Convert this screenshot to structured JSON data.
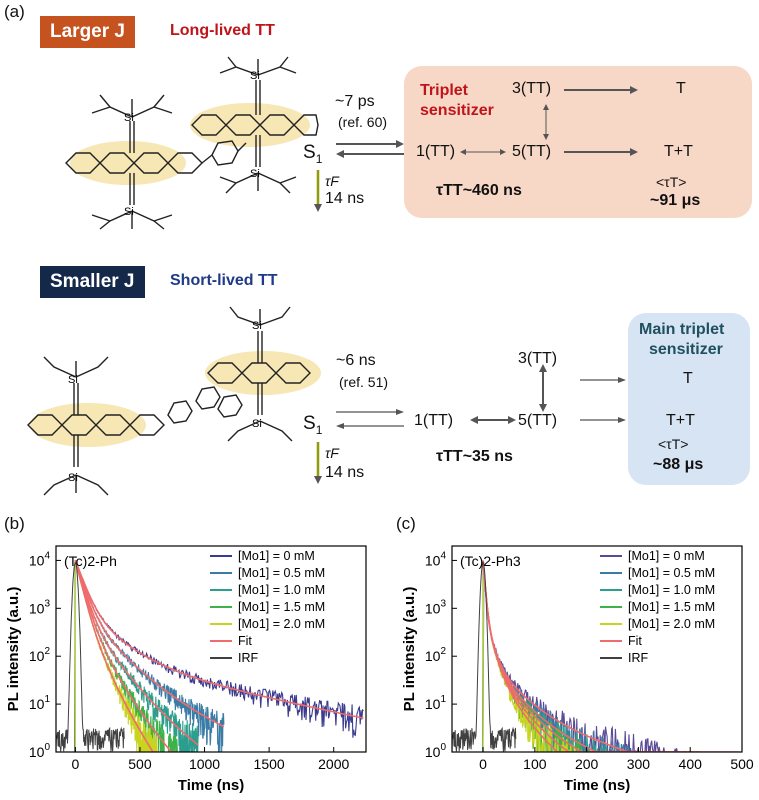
{
  "panel_labels": {
    "a": "(a)",
    "b": "(b)",
    "c": "(c)"
  },
  "top": {
    "badge": "Larger J",
    "subtitle": "Long-lived TT",
    "rate": "~7 ps",
    "ref": "(ref. 60)",
    "s1": "S1",
    "tauF": "τF",
    "tauF_value": "14 ns",
    "box_title_1": "Triplet",
    "box_title_2": "sensitizer",
    "tt3": "3(TT)",
    "tt1": "1(TT)",
    "tt5": "5(TT)",
    "T": "T",
    "TT": "T+T",
    "tau_tt": "τTT~460 ns",
    "tau_t": "<τT>",
    "tau_t_value": "~91 μs",
    "colors": {
      "badge": "#c6521f",
      "subtitle": "#c0141b",
      "box": "#f7d8c6"
    }
  },
  "bottom": {
    "badge": "Smaller J",
    "subtitle": "Short-lived TT",
    "rate": "~6 ns",
    "ref": "(ref. 51)",
    "s1": "S1",
    "tauF": "τF",
    "tauF_value": "14 ns",
    "box_title_1": "Main triplet",
    "box_title_2": "sensitizer",
    "tt3": "3(TT)",
    "tt1": "1(TT)",
    "tt5": "5(TT)",
    "T": "T",
    "TT": "T+T",
    "tau_tt": "τTT~35 ns",
    "tau_t": "<τT>",
    "tau_t_value": "~88 μs",
    "colors": {
      "badge": "#14284a",
      "subtitle": "#1f3a8a",
      "box": "#d6e4f3"
    }
  },
  "chart_data": [
    {
      "type": "line",
      "panel": "b",
      "annotation": "(Tc)2-Ph",
      "xlabel": "Time (ns)",
      "ylabel": "PL intensity (a.u.)",
      "xlim": [
        -150,
        2250
      ],
      "ylim": [
        1,
        20000
      ],
      "yscale": "log",
      "xticks": [
        0,
        500,
        1000,
        1500,
        2000
      ],
      "yticks": [
        "10^0",
        "10^1",
        "10^2",
        "10^3",
        "10^4"
      ],
      "series": [
        {
          "name": "[Mo1] = 0   mM",
          "color": "#3b3c8f",
          "components": [
            [
              9000,
              55
            ],
            [
              1000,
              180
            ],
            [
              100,
              650
            ],
            [
              12,
              1200
            ]
          ],
          "end": 2230
        },
        {
          "name": "[Mo1] = 0.5 mM",
          "color": "#3a7ca6",
          "components": [
            [
              9000,
              50
            ],
            [
              1000,
              150
            ],
            [
              60,
              380
            ]
          ],
          "end": 1150
        },
        {
          "name": "[Mo1] = 1.0 mM",
          "color": "#2b9e8e",
          "components": [
            [
              9000,
              45
            ],
            [
              1000,
              120
            ],
            [
              40,
              260
            ]
          ],
          "end": 950
        },
        {
          "name": "[Mo1] = 1.5 mM",
          "color": "#3cb24a",
          "components": [
            [
              9000,
              42
            ],
            [
              1000,
              95
            ],
            [
              30,
              190
            ]
          ],
          "end": 800
        },
        {
          "name": "[Mo1] = 2.0 mM",
          "color": "#c8d420",
          "components": [
            [
              9000,
              38
            ],
            [
              1000,
              80
            ],
            [
              25,
              150
            ]
          ],
          "end": 650
        },
        {
          "name": "Fit",
          "color": "#f06b6b",
          "fit": true
        },
        {
          "name": "IRF",
          "color": "#404040",
          "irf": true
        }
      ]
    },
    {
      "type": "line",
      "panel": "c",
      "annotation": "(Tc)2-Ph3",
      "xlabel": "Time (ns)",
      "ylabel": "PL intensity (a.u.)",
      "xlim": [
        -60,
        500
      ],
      "ylim": [
        1,
        20000
      ],
      "yscale": "log",
      "xticks": [
        0,
        100,
        200,
        300,
        400,
        500
      ],
      "yticks": [
        "10^0",
        "10^1",
        "10^2",
        "10^3",
        "10^4"
      ],
      "series": [
        {
          "name": "[Mo1] = 0 mM",
          "color": "#5a4b96",
          "components": [
            [
              9000,
              3
            ],
            [
              800,
              10
            ],
            [
              90,
              35
            ],
            [
              10,
              120
            ]
          ],
          "end": 495
        },
        {
          "name": "[Mo1] = 0.5 mM",
          "color": "#3a7ca6",
          "components": [
            [
              9000,
              3
            ],
            [
              800,
              10
            ],
            [
              90,
              32
            ],
            [
              8,
              100
            ]
          ],
          "end": 420
        },
        {
          "name": "[Mo1] = 1.0 mM",
          "color": "#2b9e8e",
          "components": [
            [
              9000,
              3
            ],
            [
              800,
              10
            ],
            [
              90,
              30
            ],
            [
              7,
              90
            ]
          ],
          "end": 380
        },
        {
          "name": "[Mo1] = 1.5 mM",
          "color": "#3cb24a",
          "components": [
            [
              9000,
              3
            ],
            [
              800,
              10
            ],
            [
              90,
              28
            ],
            [
              6,
              80
            ]
          ],
          "end": 330
        },
        {
          "name": "[Mo1] = 2.0 mM",
          "color": "#c8d420",
          "components": [
            [
              9000,
              3
            ],
            [
              800,
              10
            ],
            [
              90,
              26
            ],
            [
              5,
              70
            ]
          ],
          "end": 290
        },
        {
          "name": "Fit",
          "color": "#f06b6b",
          "fit": true
        },
        {
          "name": "IRF",
          "color": "#404040",
          "irf": true
        }
      ]
    }
  ]
}
